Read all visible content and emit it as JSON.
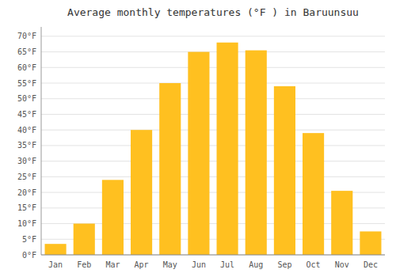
{
  "chart_data": {
    "type": "bar",
    "title": "Average monthly temperatures (°F ) in Baruunsuu",
    "categories": [
      "Jan",
      "Feb",
      "Mar",
      "Apr",
      "May",
      "Jun",
      "Jul",
      "Aug",
      "Sep",
      "Oct",
      "Nov",
      "Dec"
    ],
    "values": [
      3.5,
      10,
      24,
      40,
      55,
      65,
      68,
      65.5,
      54,
      39,
      20.5,
      7.5
    ],
    "color": "#FFC020",
    "ylim": [
      0,
      73
    ],
    "yticks": [
      {
        "value": 0,
        "label": "0°F"
      },
      {
        "value": 5,
        "label": "5°F"
      },
      {
        "value": 10,
        "label": "10°F"
      },
      {
        "value": 15,
        "label": "15°F"
      },
      {
        "value": 20,
        "label": "20°F"
      },
      {
        "value": 25,
        "label": "25°F"
      },
      {
        "value": 30,
        "label": "30°F"
      },
      {
        "value": 35,
        "label": "35°F"
      },
      {
        "value": 40,
        "label": "40°F"
      },
      {
        "value": 45,
        "label": "45°F"
      },
      {
        "value": 50,
        "label": "50°F"
      },
      {
        "value": 55,
        "label": "55°F"
      },
      {
        "value": 60,
        "label": "60°F"
      },
      {
        "value": 65,
        "label": "65°F"
      },
      {
        "value": 70,
        "label": "70°F"
      }
    ],
    "grid": true
  }
}
